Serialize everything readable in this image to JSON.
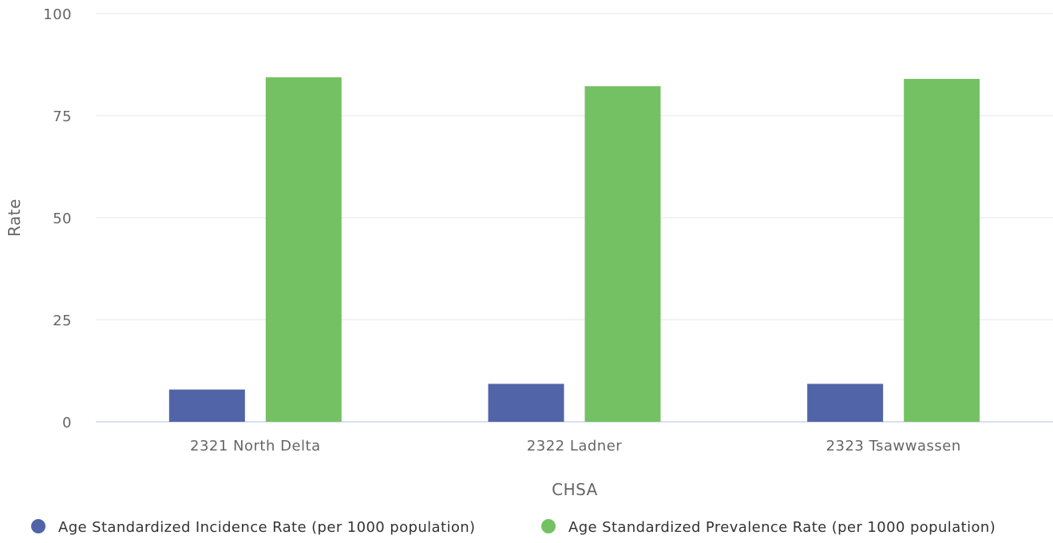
{
  "chart_data": {
    "type": "bar",
    "title": "",
    "xlabel": "CHSA",
    "ylabel": "Rate",
    "categories": [
      "2321 North Delta",
      "2322 Ladner",
      "2323 Tsawwassen"
    ],
    "series": [
      {
        "name": "Age Standardized Incidence Rate (per 1000 population)",
        "color": "#5264a8",
        "values": [
          7.9,
          9.3,
          9.3
        ]
      },
      {
        "name": "Age Standardized Prevalence Rate (per 1000 population)",
        "color": "#74c163",
        "values": [
          84.4,
          82.2,
          84.0
        ]
      }
    ],
    "ylim": [
      0,
      100
    ],
    "yticks": [
      "0",
      "25",
      "50",
      "75",
      "100"
    ],
    "grid": true,
    "legend_position": "bottom"
  }
}
